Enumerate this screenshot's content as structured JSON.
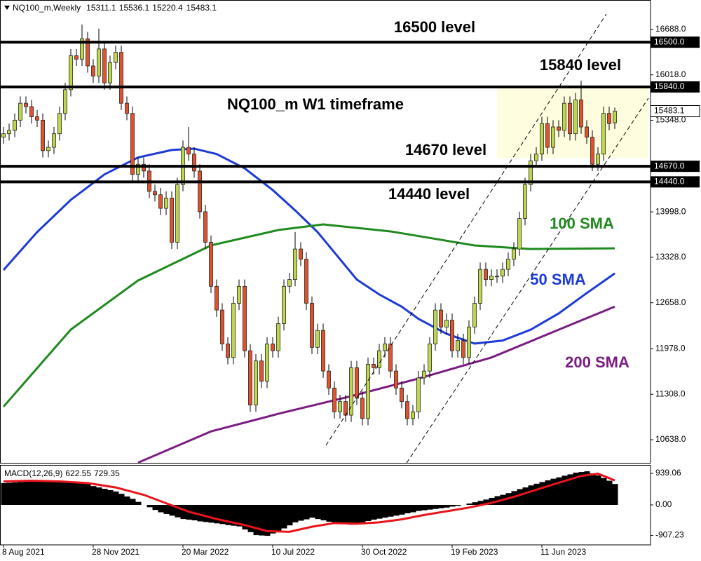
{
  "chart_data": [
    {
      "type": "candlestick",
      "title": "NQ100_m W1 timeframe",
      "symbol": "NQ100_m,Weekly",
      "categories": [
        "8 Aug 2021",
        null,
        null,
        null,
        null,
        null,
        null,
        null,
        null,
        null,
        null,
        null,
        null,
        null,
        null,
        null,
        "28 Nov 2021",
        null,
        null,
        null,
        null,
        null,
        null,
        null,
        null,
        null,
        null,
        null,
        null,
        null,
        null,
        null,
        "20 Mar 2022",
        null,
        null,
        null,
        null,
        null,
        null,
        null,
        null,
        null,
        null,
        null,
        null,
        null,
        null,
        null,
        "10 Jul 2022",
        null,
        null,
        null,
        null,
        null,
        null,
        null,
        null,
        null,
        null,
        null,
        null,
        null,
        null,
        null,
        "30 Oct 2022",
        null,
        null,
        null,
        null,
        null,
        null,
        null,
        null,
        null,
        null,
        null,
        null,
        null,
        null,
        null,
        "19 Feb 2023",
        null,
        null,
        null,
        null,
        null,
        null,
        null,
        null,
        null,
        null,
        null,
        null,
        null,
        null,
        null,
        "11 Jun 2023",
        null,
        null,
        null,
        null,
        null,
        null,
        null,
        null,
        null,
        null,
        null,
        null,
        null
      ],
      "open": [
        15100,
        15150,
        15200,
        15350,
        15600,
        15550,
        15400,
        15350,
        14900,
        14950,
        15150,
        15450,
        15800,
        16300,
        16250,
        16550,
        16150,
        16000,
        16400,
        15900,
        16200,
        16350,
        15600,
        15450,
        14550,
        14700,
        14600,
        14300,
        14250,
        14050,
        14200,
        13550,
        14400,
        14950,
        14850,
        14600,
        14000,
        13550,
        12900,
        12550,
        12050,
        11850,
        12650,
        12900,
        11950,
        11150,
        11800,
        11500,
        12050,
        11950,
        12350,
        12900,
        13000,
        13450,
        13300,
        12650,
        12000,
        12250,
        11650,
        11400,
        11050,
        11200,
        11000,
        11700,
        11250,
        10950,
        11750,
        11700,
        11950,
        12050,
        11650,
        11400,
        11200,
        10950,
        11050,
        11550,
        11650,
        12050,
        12550,
        12300,
        12400,
        11950,
        12100,
        11850,
        12300,
        12650,
        13150,
        13000,
        13050,
        13050,
        13150,
        13300,
        13450,
        13900,
        14400,
        14750,
        14850,
        15300,
        14950,
        15250,
        15200,
        15600,
        15150,
        15650,
        15250,
        15100,
        14700,
        14850,
        15450,
        15311.1
      ],
      "high": [
        15250,
        15300,
        15450,
        15700,
        15700,
        15650,
        15500,
        15450,
        15050,
        15250,
        15550,
        15900,
        16400,
        16400,
        16760,
        16650,
        16250,
        16700,
        16500,
        16300,
        16450,
        16450,
        15700,
        15550,
        14800,
        14800,
        14700,
        14400,
        14350,
        14300,
        14300,
        14500,
        15050,
        15250,
        14950,
        14700,
        14100,
        13650,
        13000,
        12650,
        12150,
        12750,
        13000,
        13000,
        12050,
        11900,
        11900,
        12150,
        12150,
        12450,
        13000,
        13100,
        13700,
        13550,
        13400,
        12750,
        12350,
        12350,
        11750,
        11500,
        11300,
        11300,
        11800,
        11800,
        11350,
        11850,
        11850,
        12050,
        12150,
        12150,
        11750,
        11500,
        11300,
        11150,
        11650,
        11750,
        12150,
        12650,
        12650,
        12500,
        12500,
        12200,
        12200,
        12400,
        12750,
        13250,
        13250,
        13150,
        13150,
        13250,
        13400,
        13550,
        14000,
        14500,
        14850,
        14950,
        15400,
        15400,
        15350,
        15350,
        15700,
        15700,
        15750,
        15930,
        15350,
        15200,
        14950,
        15550,
        15550,
        15536.1
      ],
      "low": [
        15000,
        15050,
        15100,
        15250,
        15450,
        15300,
        15250,
        14800,
        14800,
        14850,
        15050,
        15350,
        15700,
        16150,
        16150,
        16050,
        15900,
        15900,
        15800,
        15800,
        16100,
        15500,
        15350,
        14450,
        14450,
        14500,
        14200,
        14150,
        13950,
        13950,
        13450,
        13450,
        14300,
        14750,
        14500,
        13900,
        13450,
        12800,
        12450,
        11950,
        11750,
        11750,
        12550,
        11850,
        11050,
        11050,
        11400,
        11400,
        11850,
        11850,
        12250,
        12800,
        12900,
        13200,
        12550,
        11900,
        11900,
        11550,
        11300,
        10950,
        10950,
        10900,
        10900,
        11150,
        10850,
        10850,
        11600,
        11600,
        11850,
        11550,
        11300,
        11100,
        10850,
        10850,
        10950,
        11450,
        11550,
        11950,
        12200,
        12200,
        11850,
        11850,
        11750,
        11750,
        12200,
        12550,
        12900,
        12900,
        12950,
        12950,
        13050,
        13200,
        13350,
        13800,
        14300,
        14650,
        14750,
        14850,
        14850,
        15100,
        15100,
        15050,
        15050,
        15150,
        15000,
        14600,
        14600,
        14750,
        15200,
        15220.4
      ],
      "close": [
        15150,
        15200,
        15350,
        15600,
        15550,
        15400,
        15350,
        14900,
        14950,
        15150,
        15450,
        15800,
        16300,
        16250,
        16550,
        16150,
        16000,
        16400,
        15900,
        16200,
        16350,
        15600,
        15450,
        14550,
        14700,
        14600,
        14300,
        14250,
        14050,
        14200,
        13550,
        14400,
        14950,
        14850,
        14600,
        14000,
        13550,
        12900,
        12550,
        12050,
        11850,
        12650,
        12900,
        11950,
        11150,
        11800,
        11500,
        12050,
        11950,
        12350,
        12900,
        13000,
        13450,
        13300,
        12650,
        12000,
        12250,
        11650,
        11400,
        11050,
        11200,
        11000,
        11700,
        11250,
        10950,
        11750,
        11700,
        11950,
        12050,
        11650,
        11400,
        11200,
        10950,
        11050,
        11550,
        11650,
        12050,
        12550,
        12300,
        12400,
        11950,
        12100,
        11850,
        12300,
        12650,
        13150,
        13000,
        13050,
        13050,
        13150,
        13300,
        13450,
        13900,
        14400,
        14750,
        14850,
        15300,
        14950,
        15250,
        15200,
        15600,
        15150,
        15650,
        15250,
        15100,
        14700,
        14850,
        15450,
        15300,
        15483.1
      ],
      "up_color": "#bcd84a",
      "down_color": "#e0522c",
      "ylim": [
        10297,
        17122
      ],
      "yticks": [
        {
          "value": 16688,
          "label": "16688.0"
        },
        {
          "value": 16018,
          "label": "16018.0"
        },
        {
          "value": 15348,
          "label": "15348.0"
        },
        {
          "value": 13998,
          "label": "13998.0"
        },
        {
          "value": 13328,
          "label": "13328.0"
        },
        {
          "value": 12658,
          "label": "12658.0"
        },
        {
          "value": 11978,
          "label": "11978.0"
        },
        {
          "value": 11308,
          "label": "11308.0"
        },
        {
          "value": 10638,
          "label": "10638.0"
        }
      ],
      "series": [
        {
          "name": "50 SMA",
          "color": "#1c3ad6",
          "x": [
            0,
            6,
            12,
            18,
            24,
            30,
            34,
            38,
            43,
            48,
            52,
            56,
            59,
            63,
            67,
            71,
            74,
            79,
            84,
            89,
            94,
            99,
            104,
            109
          ],
          "values": [
            13140,
            13700,
            14175,
            14550,
            14800,
            14910,
            14930,
            14850,
            14640,
            14320,
            14020,
            13700,
            13400,
            13000,
            12780,
            12600,
            12420,
            12200,
            12055,
            12100,
            12260,
            12500,
            12800,
            13090
          ]
        },
        {
          "name": "100 SMA",
          "color": "#1f8a1f",
          "x": [
            0,
            12,
            24,
            37,
            49,
            57,
            69,
            84,
            94,
            109
          ],
          "values": [
            11125,
            12262,
            12986,
            13503,
            13730,
            13813,
            13710,
            13503,
            13450,
            13460
          ]
        },
        {
          "name": "200 SMA",
          "color": "#7b1c82",
          "x": [
            24,
            37,
            49,
            62,
            74,
            87,
            99,
            109
          ],
          "values": [
            10300,
            10760,
            11020,
            11280,
            11540,
            11850,
            12260,
            12600
          ]
        }
      ],
      "levels": [
        {
          "value": 16500,
          "label": "16500.0",
          "text": "16500 level"
        },
        {
          "value": 15840,
          "label": "15840.0",
          "text": "15840 level"
        },
        {
          "value": 14670,
          "label": "14670.0",
          "text": "14670 level"
        },
        {
          "value": 14440,
          "label": "14440.0",
          "text": "14440 level"
        }
      ],
      "zone": {
        "x": [
          88,
          115
        ],
        "y": [
          14790,
          15840
        ],
        "color": "#fffde0"
      },
      "channels": [
        {
          "x": [
            57.5,
            107.5
          ],
          "y": [
            10556,
            16915
          ]
        },
        {
          "x": [
            71.9,
            115
          ],
          "y": [
            10297,
            15675
          ]
        }
      ]
    },
    {
      "type": "macd",
      "title": "MACD(12,26,9)",
      "values": [
        650,
        660,
        670,
        680,
        690,
        700,
        704,
        708,
        712,
        716,
        720,
        710,
        700,
        690,
        680,
        620,
        560,
        520,
        480,
        440,
        400,
        330,
        250,
        180,
        90,
        0,
        -70,
        -150,
        -220,
        -270,
        -320,
        -370,
        -420,
        -440,
        -460,
        -490,
        -510,
        -530,
        -550,
        -570,
        -600,
        -620,
        -640,
        -730,
        -810,
        -900,
        -910,
        -920,
        -850,
        -780,
        -700,
        -610,
        -520,
        -470,
        -430,
        -380,
        -420,
        -460,
        -500,
        -520,
        -550,
        -570,
        -590,
        -550,
        -520,
        -480,
        -440,
        -410,
        -380,
        -350,
        -320,
        -290,
        -250,
        -220,
        -180,
        -160,
        -140,
        -120,
        -100,
        -80,
        -50,
        -30,
        0,
        40,
        80,
        120,
        160,
        210,
        260,
        300,
        350,
        410,
        470,
        520,
        580,
        630,
        680,
        730,
        780,
        820,
        870,
        910,
        960,
        980,
        1000,
        940,
        880,
        800,
        720,
        622.55
      ],
      "signal": {
        "color": "#e8141a",
        "x": [
          0,
          5,
          10,
          15,
          20,
          25,
          29,
          33,
          38,
          43,
          47,
          51,
          55,
          59,
          63,
          67,
          71,
          75,
          79,
          83,
          87,
          91,
          95,
          99,
          103,
          106,
          109
        ],
        "values": [
          700,
          720,
          700,
          650,
          520,
          300,
          50,
          -200,
          -420,
          -600,
          -780,
          -800,
          -650,
          -540,
          -560,
          -520,
          -430,
          -300,
          -190,
          -80,
          60,
          240,
          450,
          660,
          860,
          930,
          729.35
        ]
      },
      "ylim": [
        -1190,
        1169
      ],
      "yticks": [
        939.06,
        {
          "value": 0,
          "label": "0.00"
        },
        -907.23
      ]
    }
  ]
}
